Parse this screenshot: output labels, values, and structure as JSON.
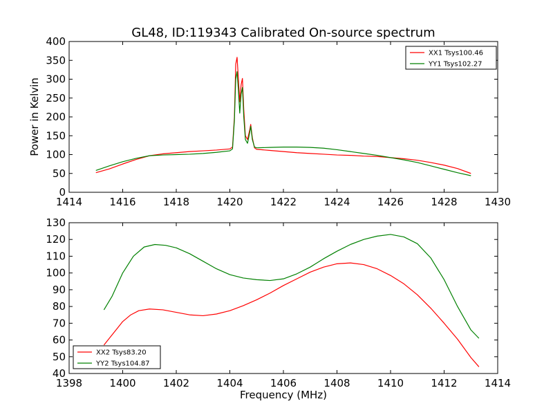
{
  "figure": {
    "title": "GL48, ID:119343 Calibrated On-source spectrum"
  },
  "colors": {
    "red": "#ff0000",
    "green": "#008000",
    "axes": "#000000",
    "background": "#ffffff"
  },
  "chart_data": [
    {
      "type": "line",
      "title": "GL48, ID:119343 Calibrated On-source spectrum",
      "xlabel": "",
      "ylabel": "Power in Kelvin",
      "xlim": [
        1414,
        1430
      ],
      "ylim": [
        0,
        400
      ],
      "xticks": [
        "1414",
        "1416",
        "1418",
        "1420",
        "1422",
        "1424",
        "1426",
        "1428",
        "1430"
      ],
      "yticks": [
        "0",
        "50",
        "100",
        "150",
        "200",
        "250",
        "300",
        "350",
        "400"
      ],
      "grid": false,
      "legend_position": "top-right",
      "series": [
        {
          "name": "XX1 Tsys100.46",
          "color": "#ff0000",
          "points": [
            [
              1415.0,
              52
            ],
            [
              1415.5,
              62
            ],
            [
              1416.0,
              75
            ],
            [
              1416.5,
              87
            ],
            [
              1417.0,
              97
            ],
            [
              1417.5,
              102
            ],
            [
              1418.0,
              105
            ],
            [
              1418.5,
              108
            ],
            [
              1419.0,
              110
            ],
            [
              1419.5,
              112
            ],
            [
              1420.0,
              115
            ],
            [
              1420.1,
              120
            ],
            [
              1420.17,
              200
            ],
            [
              1420.22,
              340
            ],
            [
              1420.27,
              358
            ],
            [
              1420.32,
              300
            ],
            [
              1420.37,
              240
            ],
            [
              1420.42,
              285
            ],
            [
              1420.47,
              302
            ],
            [
              1420.52,
              220
            ],
            [
              1420.58,
              150
            ],
            [
              1420.66,
              140
            ],
            [
              1420.74,
              165
            ],
            [
              1420.78,
              180
            ],
            [
              1420.84,
              145
            ],
            [
              1420.92,
              118
            ],
            [
              1421.0,
              114
            ],
            [
              1421.5,
              111
            ],
            [
              1422.0,
              108
            ],
            [
              1422.5,
              105
            ],
            [
              1423.0,
              103
            ],
            [
              1423.5,
              101
            ],
            [
              1424.0,
              99
            ],
            [
              1424.5,
              98
            ],
            [
              1425.0,
              96
            ],
            [
              1425.5,
              95
            ],
            [
              1426.0,
              92
            ],
            [
              1426.5,
              89
            ],
            [
              1427.0,
              85
            ],
            [
              1427.5,
              79
            ],
            [
              1428.0,
              72
            ],
            [
              1428.5,
              63
            ],
            [
              1429.0,
              50
            ]
          ]
        },
        {
          "name": "YY1 Tsys102.27",
          "color": "#008000",
          "points": [
            [
              1415.0,
              58
            ],
            [
              1415.5,
              70
            ],
            [
              1416.0,
              81
            ],
            [
              1416.5,
              90
            ],
            [
              1417.0,
              97
            ],
            [
              1417.5,
              99
            ],
            [
              1418.0,
              100
            ],
            [
              1418.5,
              101
            ],
            [
              1419.0,
              103
            ],
            [
              1419.5,
              106
            ],
            [
              1420.0,
              110
            ],
            [
              1420.1,
              115
            ],
            [
              1420.17,
              190
            ],
            [
              1420.22,
              300
            ],
            [
              1420.27,
              320
            ],
            [
              1420.32,
              270
            ],
            [
              1420.37,
              210
            ],
            [
              1420.42,
              260
            ],
            [
              1420.47,
              278
            ],
            [
              1420.52,
              200
            ],
            [
              1420.58,
              140
            ],
            [
              1420.66,
              130
            ],
            [
              1420.74,
              158
            ],
            [
              1420.78,
              175
            ],
            [
              1420.84,
              140
            ],
            [
              1420.92,
              120
            ],
            [
              1421.0,
              118
            ],
            [
              1421.5,
              119
            ],
            [
              1422.0,
              120
            ],
            [
              1422.5,
              120
            ],
            [
              1423.0,
              119
            ],
            [
              1423.5,
              117
            ],
            [
              1424.0,
              113
            ],
            [
              1424.5,
              108
            ],
            [
              1425.0,
              103
            ],
            [
              1425.5,
              98
            ],
            [
              1426.0,
              92
            ],
            [
              1426.5,
              86
            ],
            [
              1427.0,
              79
            ],
            [
              1427.5,
              70
            ],
            [
              1428.0,
              61
            ],
            [
              1428.5,
              52
            ],
            [
              1429.0,
              44
            ]
          ]
        }
      ]
    },
    {
      "type": "line",
      "title": "",
      "xlabel": "Frequency (MHz)",
      "ylabel": "",
      "xlim": [
        1398,
        1414
      ],
      "ylim": [
        40,
        130
      ],
      "xticks": [
        "1398",
        "1400",
        "1402",
        "1404",
        "1406",
        "1408",
        "1410",
        "1412",
        "1414"
      ],
      "yticks": [
        "40",
        "50",
        "60",
        "70",
        "80",
        "90",
        "100",
        "110",
        "120",
        "130"
      ],
      "grid": false,
      "legend_position": "bottom-left",
      "series": [
        {
          "name": "XX2 Tsys83.20",
          "color": "#ff0000",
          "points": [
            [
              1399.3,
              57
            ],
            [
              1399.5,
              61
            ],
            [
              1399.8,
              67
            ],
            [
              1400.0,
              71
            ],
            [
              1400.3,
              75
            ],
            [
              1400.6,
              77.5
            ],
            [
              1401.0,
              78.5
            ],
            [
              1401.5,
              78
            ],
            [
              1402.0,
              76.5
            ],
            [
              1402.5,
              75
            ],
            [
              1403.0,
              74.5
            ],
            [
              1403.5,
              75.5
            ],
            [
              1404.0,
              77.5
            ],
            [
              1404.5,
              80.5
            ],
            [
              1405.0,
              84
            ],
            [
              1405.5,
              88
            ],
            [
              1406.0,
              92.5
            ],
            [
              1406.5,
              96.5
            ],
            [
              1407.0,
              100.5
            ],
            [
              1407.5,
              103.5
            ],
            [
              1408.0,
              105.5
            ],
            [
              1408.5,
              106
            ],
            [
              1409.0,
              105
            ],
            [
              1409.5,
              102.5
            ],
            [
              1410.0,
              98.5
            ],
            [
              1410.5,
              93.5
            ],
            [
              1411.0,
              87
            ],
            [
              1411.5,
              79
            ],
            [
              1412.0,
              70
            ],
            [
              1412.5,
              60.5
            ],
            [
              1413.0,
              49.5
            ],
            [
              1413.3,
              44
            ]
          ]
        },
        {
          "name": "YY2 Tsys104.87",
          "color": "#008000",
          "points": [
            [
              1399.3,
              78
            ],
            [
              1399.6,
              86
            ],
            [
              1400.0,
              100
            ],
            [
              1400.4,
              110
            ],
            [
              1400.8,
              115.5
            ],
            [
              1401.2,
              117
            ],
            [
              1401.6,
              116.5
            ],
            [
              1402.0,
              115
            ],
            [
              1402.5,
              111.5
            ],
            [
              1403.0,
              107
            ],
            [
              1403.5,
              102.5
            ],
            [
              1404.0,
              99
            ],
            [
              1404.5,
              97
            ],
            [
              1405.0,
              96
            ],
            [
              1405.5,
              95.5
            ],
            [
              1406.0,
              96.5
            ],
            [
              1406.5,
              99.5
            ],
            [
              1407.0,
              103.5
            ],
            [
              1407.5,
              108.5
            ],
            [
              1408.0,
              113
            ],
            [
              1408.5,
              117
            ],
            [
              1409.0,
              120
            ],
            [
              1409.5,
              122
            ],
            [
              1410.0,
              123
            ],
            [
              1410.5,
              121.5
            ],
            [
              1411.0,
              117.5
            ],
            [
              1411.5,
              109
            ],
            [
              1412.0,
              96
            ],
            [
              1412.5,
              80
            ],
            [
              1413.0,
              66
            ],
            [
              1413.3,
              61
            ]
          ]
        }
      ]
    }
  ]
}
